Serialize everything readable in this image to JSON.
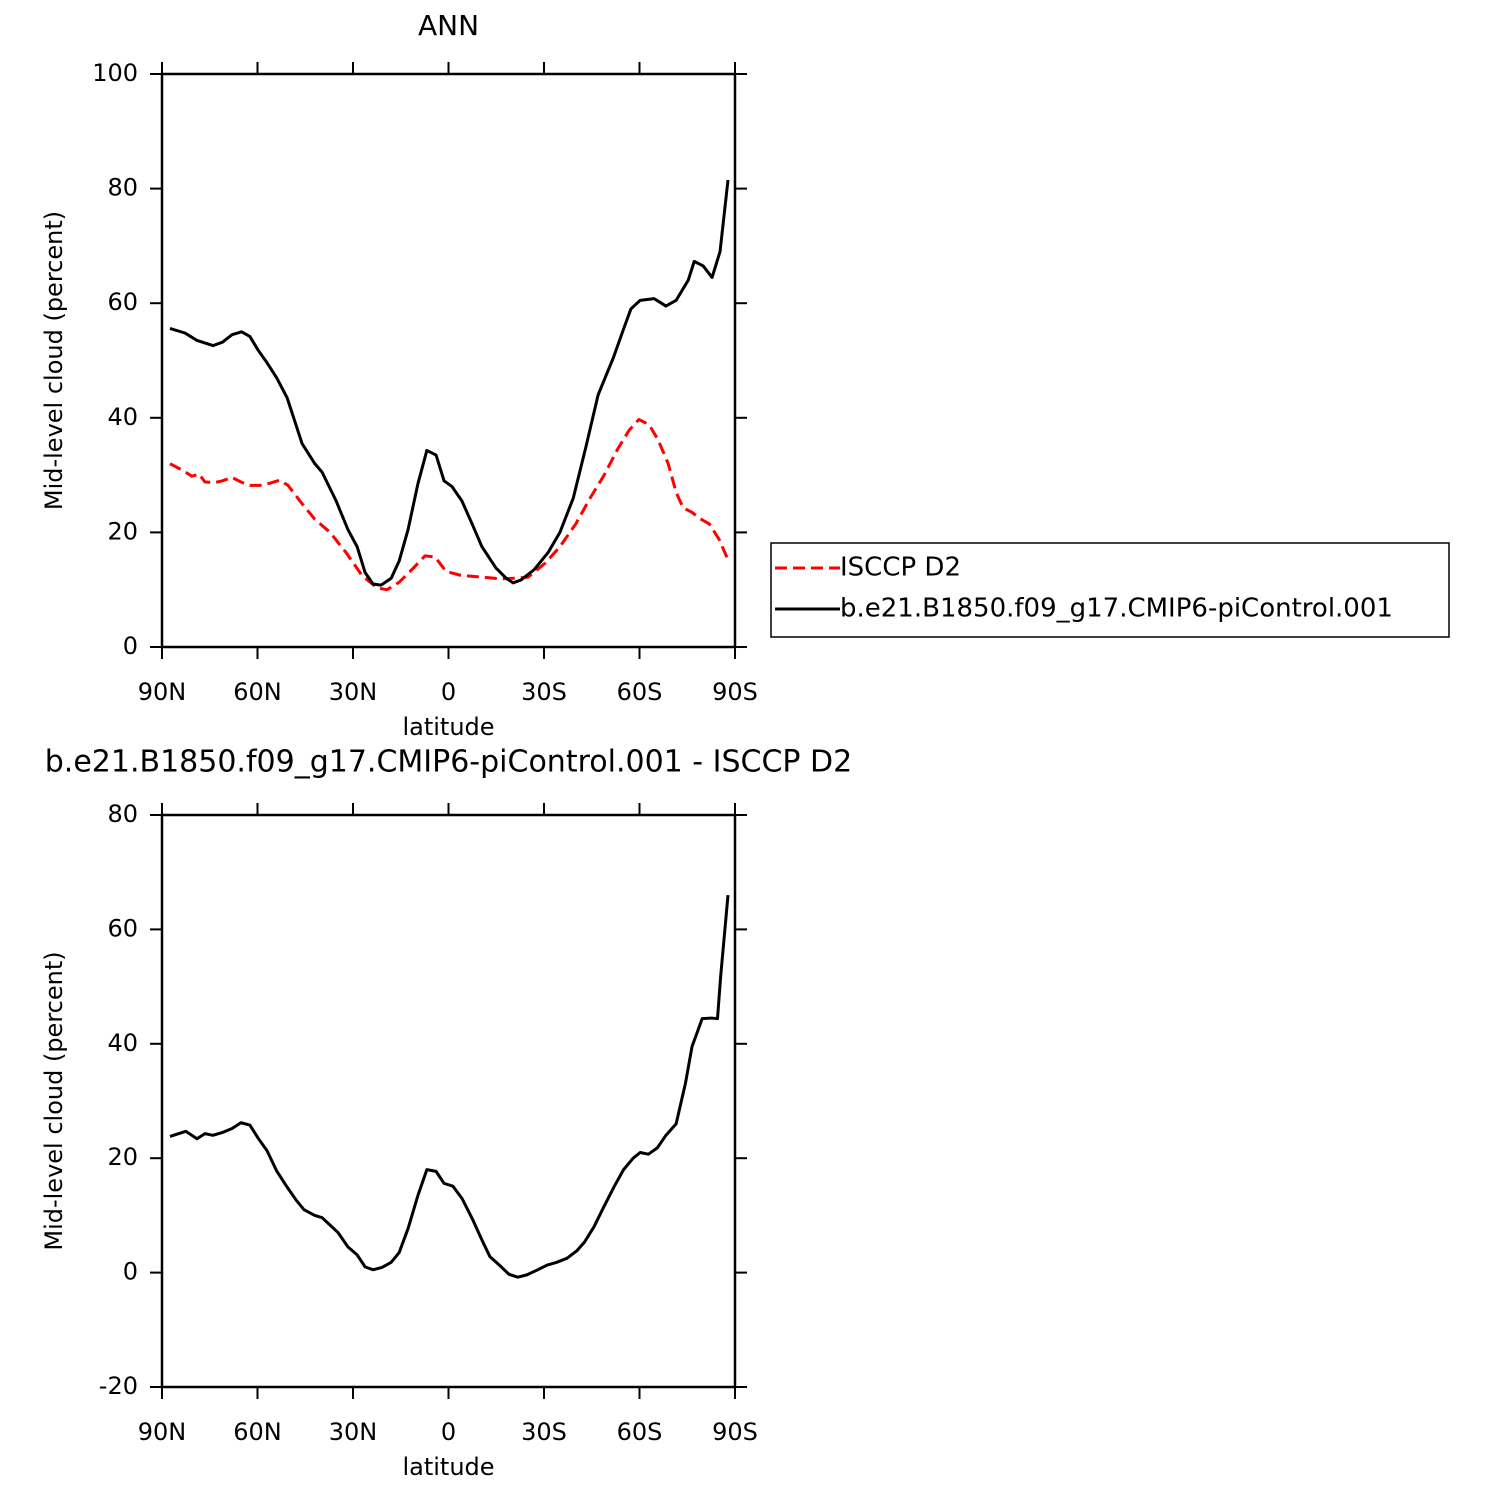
{
  "chart_data": [
    {
      "type": "line",
      "title": "ANN",
      "xlabel": "latitude",
      "ylabel": "Mid-level cloud (percent)",
      "xlim": [
        90,
        -90
      ],
      "xticks": [
        {
          "value": 90,
          "label": "90N"
        },
        {
          "value": 60,
          "label": "60N"
        },
        {
          "value": 30,
          "label": "30N"
        },
        0,
        {
          "value": -30,
          "label": "30S"
        },
        {
          "value": -60,
          "label": "60S"
        },
        {
          "value": -90,
          "label": "90S"
        }
      ],
      "ylim": [
        0,
        100
      ],
      "yticks": [
        0,
        20,
        40,
        60,
        80,
        100
      ],
      "legend": "right",
      "series": [
        {
          "name": "ISCCP D2",
          "color": "#ff0000",
          "linestyle": "dashed",
          "x": [
            87.5,
            83.4,
            80.6,
            78.4,
            76.5,
            73.4,
            71,
            68,
            65.2,
            62.4,
            59.2,
            56,
            53,
            50.4,
            46,
            42,
            37.2,
            32.2,
            27.2,
            22.4,
            19.3,
            15.5,
            11,
            7.4,
            4.2,
            0.8,
            -3.9,
            -10.5,
            -16.2,
            -20.9,
            -25,
            -30.3,
            -35,
            -40,
            -44.5,
            -48.9,
            -53.2,
            -56.7,
            -59.8,
            -63,
            -65.8,
            -69,
            -71.5,
            -73.7,
            -76.5,
            -79,
            -81.9,
            -85,
            -87.8
          ],
          "values": [
            32,
            30.8,
            29.8,
            30.2,
            28.8,
            28.7,
            29,
            29.6,
            28.8,
            28.2,
            28.2,
            28.6,
            29.1,
            28.2,
            25,
            22.3,
            20,
            16.5,
            12.5,
            10.3,
            10,
            11.3,
            13.8,
            15.9,
            15.7,
            13.2,
            12.5,
            12.2,
            11.9,
            12,
            12.2,
            14.6,
            17.5,
            21.5,
            26,
            30,
            34.6,
            37.8,
            39.7,
            38.8,
            36.2,
            32,
            27,
            24.3,
            23.5,
            22.4,
            21.5,
            18.8,
            15.2
          ]
        },
        {
          "name": "b.e21.B1850.f09_g17.CMIP6-piControl.001",
          "color": "#000000",
          "linestyle": "solid",
          "x": [
            87.5,
            82.8,
            79,
            74,
            71,
            68,
            65,
            62.4,
            59.8,
            57,
            54,
            50.7,
            46,
            42,
            39.7,
            35.3,
            31.6,
            28.7,
            26.2,
            23.7,
            21.2,
            18,
            15.5,
            12.7,
            9.6,
            6.8,
            3.9,
            1.4,
            -1.1,
            -4.2,
            -7.4,
            -10.5,
            -14.9,
            -18.1,
            -20.3,
            -22.8,
            -26.9,
            -31.3,
            -35,
            -39.2,
            -43.2,
            -47,
            -51.8,
            -55,
            -57.3,
            -60.2,
            -64.6,
            -68.3,
            -71.5,
            -75.3,
            -77.2,
            -80,
            -82.8,
            -85.3,
            -87.8
          ],
          "values": [
            55.6,
            54.8,
            53.5,
            52.6,
            53.2,
            54.5,
            55,
            54.2,
            51.8,
            49.6,
            47,
            43.5,
            35.5,
            32,
            30.5,
            25.5,
            20.5,
            17.5,
            13,
            11,
            10.8,
            12,
            15,
            20.5,
            28.5,
            34.3,
            33.5,
            29,
            28,
            25.5,
            21.5,
            17.5,
            13.8,
            12,
            11.2,
            11.7,
            13.5,
            16.5,
            20,
            26,
            35,
            44,
            50.5,
            55.5,
            59,
            60.5,
            60.8,
            59.5,
            60.5,
            64,
            67.3,
            66.5,
            64.5,
            69,
            81.5
          ]
        }
      ]
    },
    {
      "type": "line",
      "title": "b.e21.B1850.f09_g17.CMIP6-piControl.001 - ISCCP D2",
      "xlabel": "latitude",
      "ylabel": "Mid-level cloud (percent)",
      "xlim": [
        90,
        -90
      ],
      "xticks": [
        {
          "value": 90,
          "label": "90N"
        },
        {
          "value": 60,
          "label": "60N"
        },
        {
          "value": 30,
          "label": "30N"
        },
        0,
        {
          "value": -30,
          "label": "30S"
        },
        {
          "value": -60,
          "label": "60S"
        },
        {
          "value": -90,
          "label": "90S"
        }
      ],
      "ylim": [
        -20,
        80
      ],
      "yticks": [
        -20,
        0,
        20,
        40,
        60,
        80
      ],
      "series": [
        {
          "color": "#000000",
          "linestyle": "solid",
          "x": [
            87.5,
            82.5,
            79,
            76.5,
            74,
            71,
            68,
            65.2,
            62.4,
            59.8,
            57,
            54,
            51,
            47.9,
            45.4,
            42,
            39.7,
            37.2,
            34.7,
            31.6,
            28.7,
            26.2,
            23.7,
            20.9,
            18,
            15.5,
            12.7,
            9.6,
            6.8,
            3.9,
            1.4,
            -1.4,
            -4.2,
            -7.4,
            -10.5,
            -13,
            -16.2,
            -19,
            -21.8,
            -24.6,
            -27.7,
            -30.9,
            -34,
            -37.2,
            -40.3,
            -42.8,
            -45.7,
            -48.8,
            -52,
            -55,
            -58,
            -60.2,
            -62.8,
            -65.6,
            -68.3,
            -71.5,
            -74.4,
            -76.5,
            -79.7,
            -82.5,
            -84.5,
            -85.5,
            -87.8
          ],
          "values": [
            23.8,
            24.7,
            23.4,
            24.3,
            24,
            24.5,
            25.2,
            26.2,
            25.8,
            23.5,
            21.3,
            17.8,
            15.2,
            12.7,
            11,
            10,
            9.6,
            8.3,
            7,
            4.5,
            3.1,
            1,
            0.5,
            0.9,
            1.8,
            3.5,
            7.7,
            13.5,
            18,
            17.7,
            15.6,
            15.1,
            13,
            9.5,
            5.7,
            2.8,
            1.2,
            -0.3,
            -0.8,
            -0.4,
            0.4,
            1.3,
            1.8,
            2.5,
            3.8,
            5.4,
            8,
            11.5,
            15,
            18,
            20,
            21,
            20.7,
            21.8,
            24,
            26,
            33,
            39.5,
            44.4,
            44.5,
            44.4,
            51.8,
            66
          ]
        }
      ]
    }
  ]
}
